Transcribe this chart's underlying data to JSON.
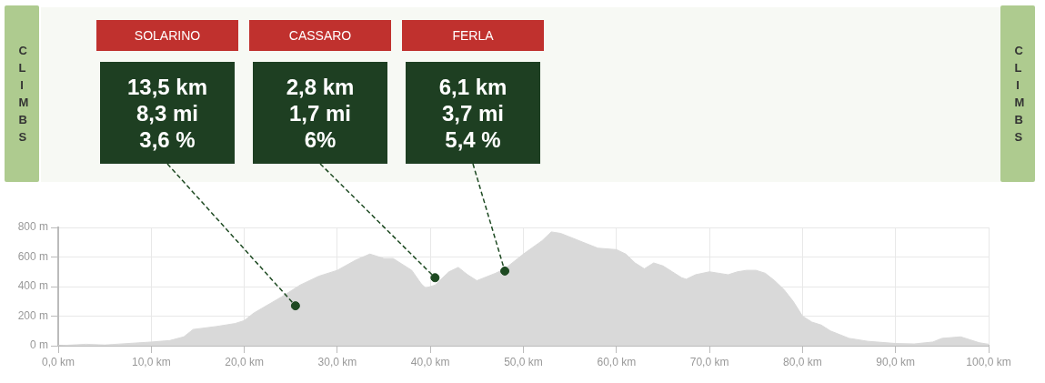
{
  "chart_data": {
    "type": "area",
    "series": [
      {
        "color": "#d9d9d9",
        "x": [
          0,
          3,
          5,
          10,
          12,
          13.5,
          14.5,
          17,
          19,
          20,
          21,
          24,
          26,
          28,
          30,
          32,
          33.5,
          35,
          36,
          38,
          39,
          39.5,
          40.5,
          42,
          43,
          44,
          45,
          47,
          48,
          50,
          52,
          53,
          54,
          56,
          58,
          60,
          61,
          62,
          63,
          64,
          65,
          66,
          67,
          67.5,
          68.5,
          70,
          71,
          72,
          73,
          74,
          75,
          76,
          77,
          78,
          79,
          80,
          81,
          82,
          83,
          85,
          87,
          90,
          92,
          94,
          95,
          97,
          98,
          99,
          100
        ],
        "values": [
          0,
          10,
          5,
          25,
          35,
          60,
          110,
          130,
          150,
          170,
          220,
          330,
          410,
          470,
          510,
          580,
          620,
          590,
          590,
          510,
          420,
          390,
          410,
          500,
          530,
          480,
          440,
          490,
          520,
          620,
          710,
          770,
          760,
          710,
          660,
          650,
          620,
          560,
          520,
          560,
          540,
          500,
          460,
          450,
          480,
          500,
          490,
          480,
          500,
          510,
          510,
          490,
          440,
          380,
          300,
          200,
          160,
          140,
          100,
          50,
          30,
          15,
          12,
          25,
          50,
          60,
          40,
          20,
          10
        ]
      },
      {
        "type": "scatter",
        "color": "#1e4a22",
        "x": [
          25.5,
          40.5,
          48
        ],
        "values": [
          270,
          460,
          505
        ]
      }
    ],
    "xlim": [
      0,
      100
    ],
    "xticks": [
      {
        "value": 0,
        "label": "0,0 km"
      },
      {
        "value": 10,
        "label": "10,0 km"
      },
      {
        "value": 20,
        "label": "20,0 km"
      },
      {
        "value": 30,
        "label": "30,0 km"
      },
      {
        "value": 40,
        "label": "40,0 km"
      },
      {
        "value": 50,
        "label": "50,0 km"
      },
      {
        "value": 60,
        "label": "60,0 km"
      },
      {
        "value": 70,
        "label": "70,0 km"
      },
      {
        "value": 80,
        "label": "80,0 km"
      },
      {
        "value": 90,
        "label": "90,0 km"
      },
      {
        "value": 100,
        "label": "100,0 km"
      }
    ],
    "ylim": [
      0,
      800
    ],
    "yticks": [
      {
        "value": 0,
        "label": "0 m"
      },
      {
        "value": 200,
        "label": "200 m"
      },
      {
        "value": 400,
        "label": "400 m"
      },
      {
        "value": 600,
        "label": "600 m"
      },
      {
        "value": 800,
        "label": "800 m"
      }
    ],
    "grid": true,
    "legend": false,
    "annotations": [
      "CLIMBS",
      "CLIMBS",
      "SOLARINO",
      {
        "text": "13,5 km\n8,3 mi\n3,6 %",
        "x": 25.5,
        "y": 270
      },
      "CASSARO",
      {
        "text": "2,8 km\n1,7 mi\n6%",
        "x": 40.5,
        "y": 460
      },
      "FERLA",
      {
        "text": "6,1 km\n3,7 mi\n5,4 %",
        "x": 48,
        "y": 505
      }
    ]
  }
}
